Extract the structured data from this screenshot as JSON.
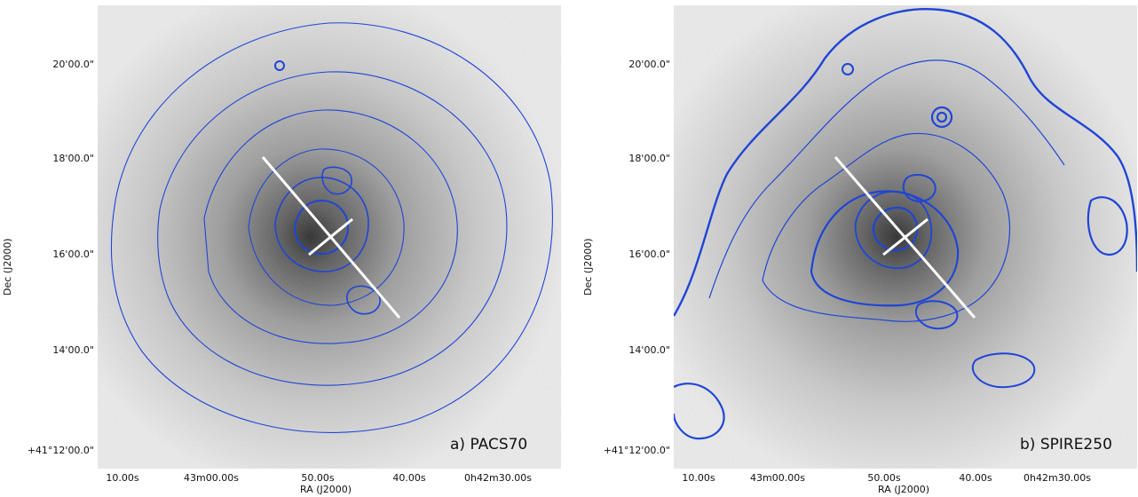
{
  "panels": [
    {
      "id": "a",
      "label": "a) PACS70",
      "x_axis_label": "RA (J2000)",
      "y_axis_label": "Dec (J2000)",
      "x_ticks": [
        "10.00s",
        "43m00.00s",
        "50.00s",
        "40.00s",
        "0h42m30.00s"
      ],
      "y_ticks": [
        "20'00.0\"",
        "18'00.0\"",
        "16'00.0\"",
        "14'00.0\"",
        "+41°12'00.0\""
      ],
      "contour_color": "#1f45d6"
    },
    {
      "id": "b",
      "label": "b) SPIRE250",
      "x_axis_label": "RA (J2000)",
      "y_axis_label": "Dec (J2000)",
      "x_ticks": [
        "10.00s",
        "43m00.00s",
        "50.00s",
        "40.00s",
        "0h42m30.00s"
      ],
      "y_ticks": [
        "20'00.0\"",
        "18'00.0\"",
        "16'00.0\"",
        "14'00.0\"",
        "+41°12'00.0\""
      ],
      "contour_color": "#1f45d6"
    }
  ]
}
